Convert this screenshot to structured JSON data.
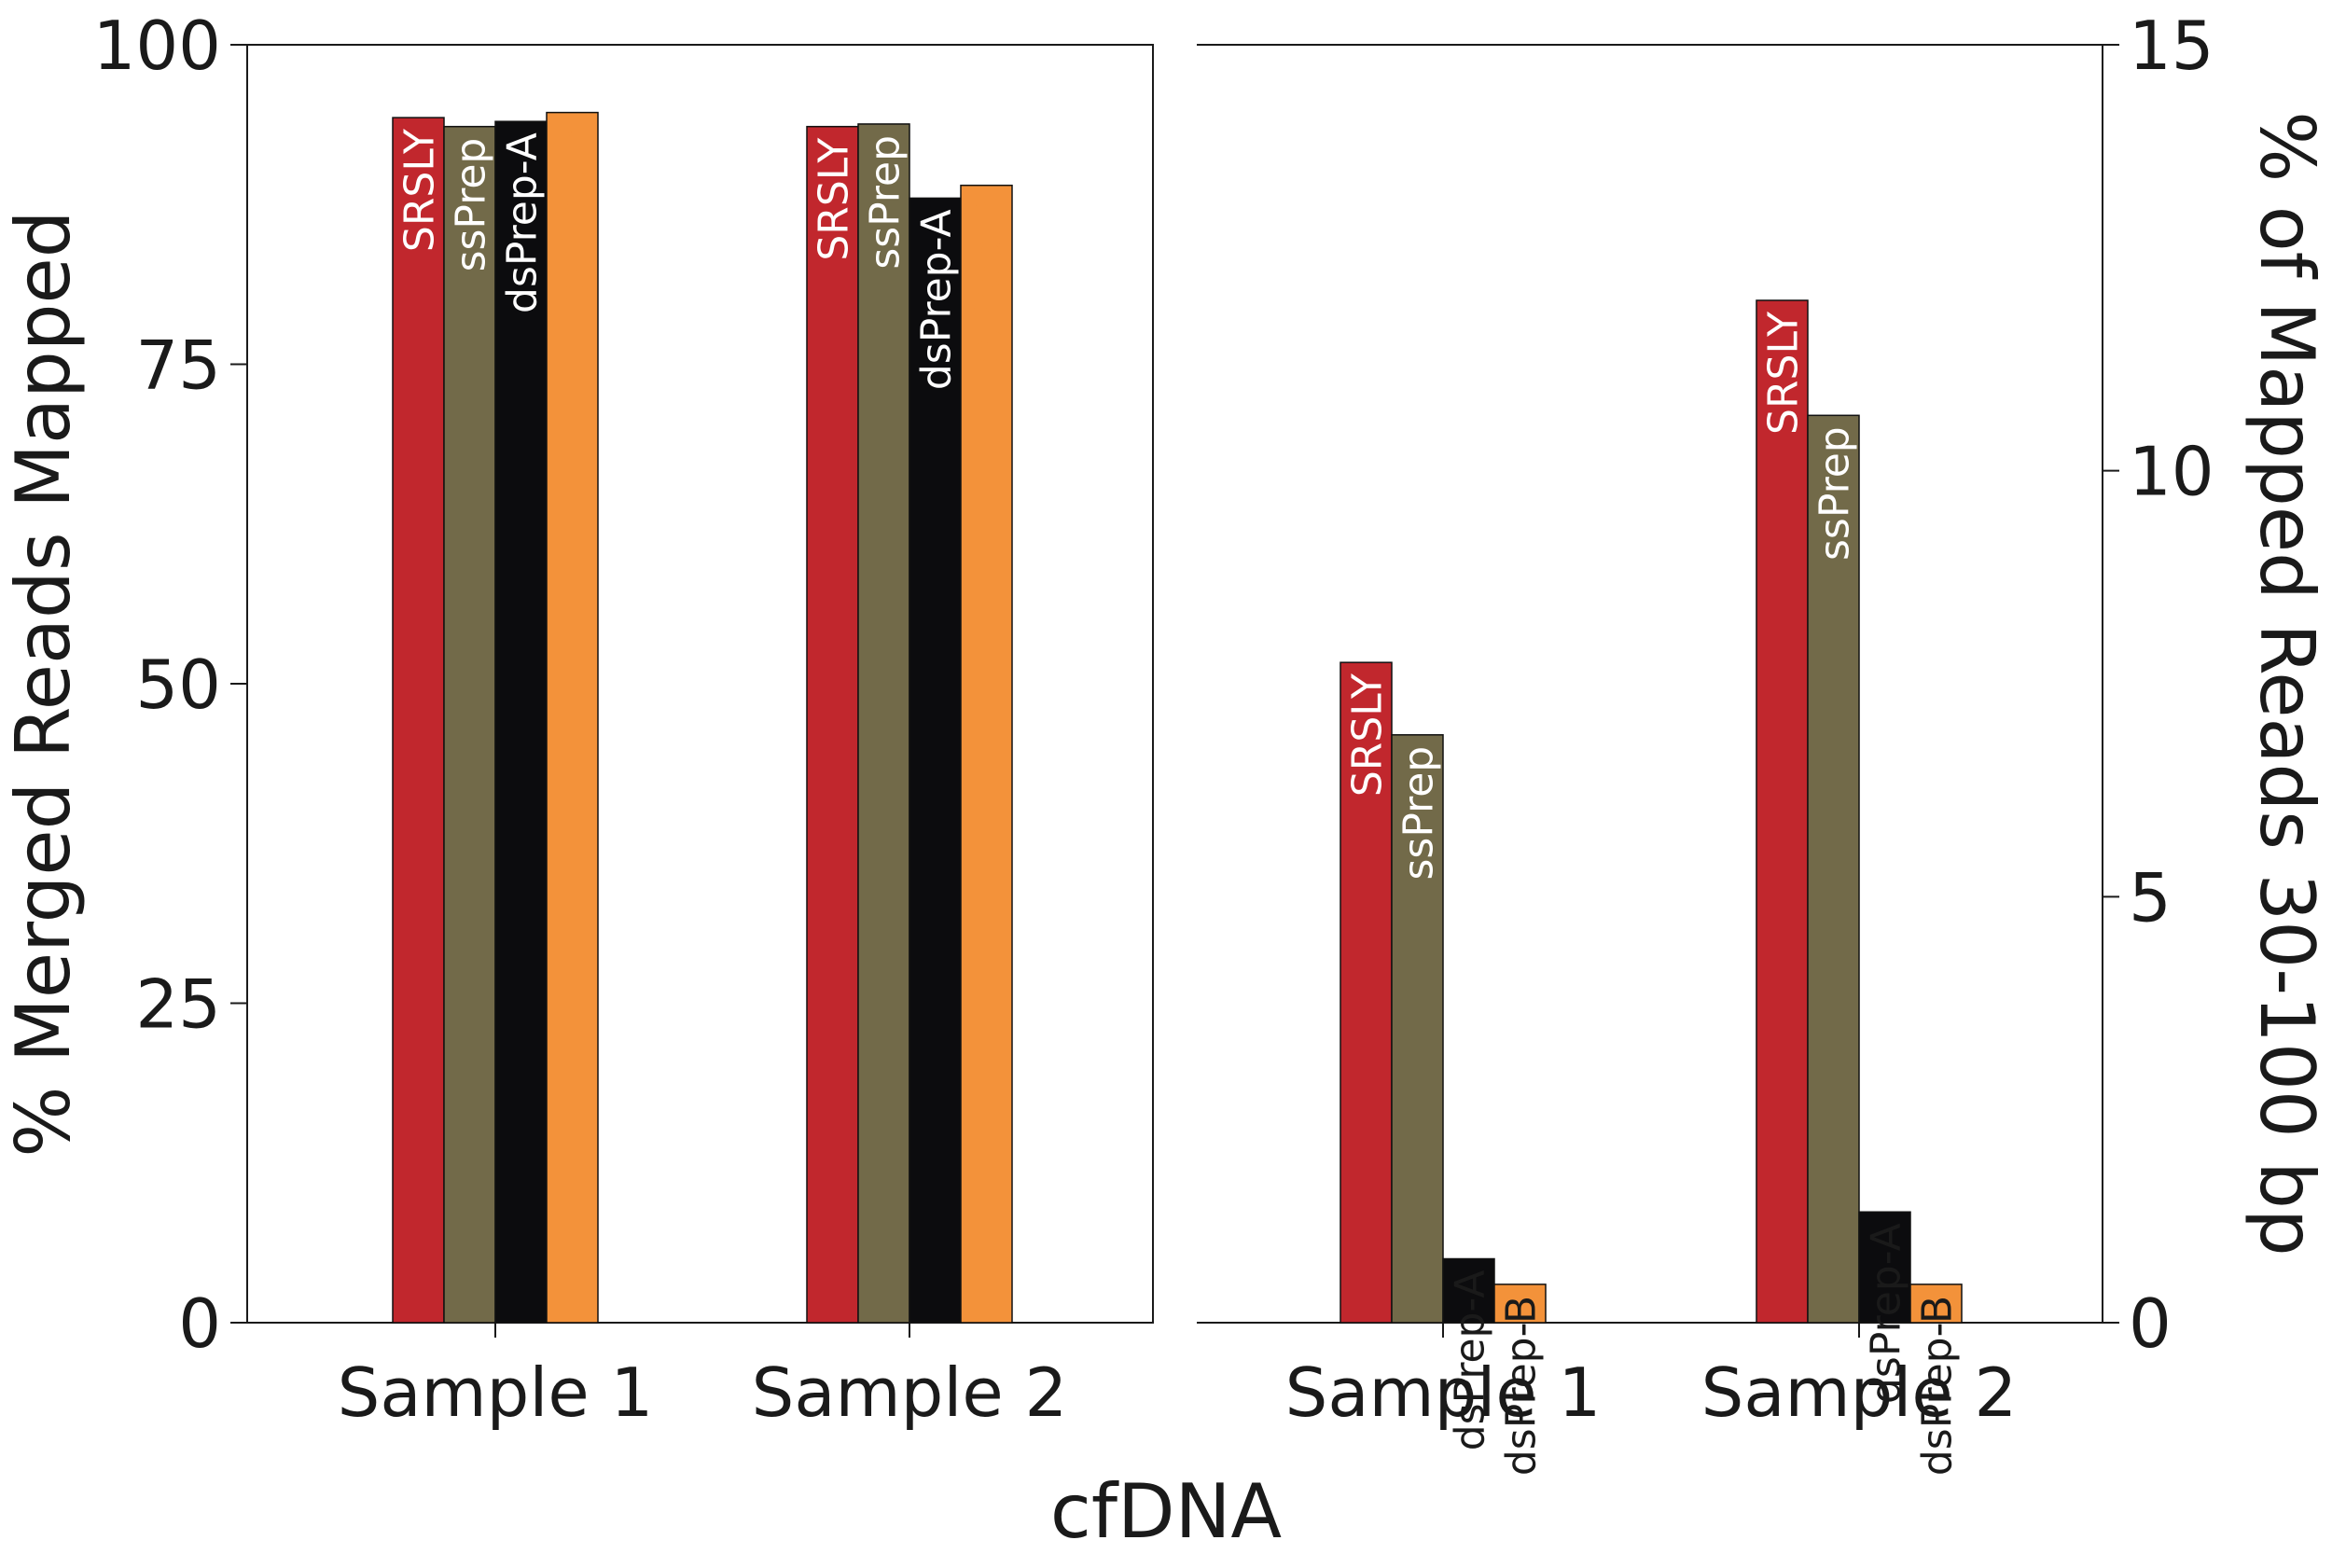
{
  "figure": {
    "xlabel": "cfDNA"
  },
  "colors": {
    "SRSLY": "#c1272d",
    "ssPrep": "#726a49",
    "dsPrep-A": "#0c0c0e",
    "dsPrep-B": "#f3923a",
    "axis": "#1a1a1a"
  },
  "chart_data": [
    {
      "type": "bar",
      "categories": [
        "Sample 1",
        "Sample 2"
      ],
      "series": [
        {
          "name": "SRSLY",
          "values": [
            94.3,
            93.6
          ],
          "label_color": "#ffffff"
        },
        {
          "name": "ssPrep",
          "values": [
            93.6,
            93.8
          ],
          "label_color": "#ffffff"
        },
        {
          "name": "dsPrep-A",
          "values": [
            94.0,
            88.0
          ],
          "label_color": "#ffffff"
        },
        {
          "name": "dsPrep-B",
          "values": [
            94.7,
            89.0
          ],
          "label_color": "#f3923a"
        }
      ],
      "ylabel": "% Merged Reads Mapped",
      "ylim": [
        0,
        100
      ],
      "yticks": [
        "0",
        "25",
        "50",
        "75",
        "100"
      ],
      "y_axis_side": "left",
      "grid": false
    },
    {
      "type": "bar",
      "categories": [
        "Sample 1",
        "Sample 2"
      ],
      "series": [
        {
          "name": "SRSLY",
          "values": [
            7.75,
            12.0
          ],
          "label_color": "#ffffff"
        },
        {
          "name": "ssPrep",
          "values": [
            6.9,
            10.65
          ],
          "label_color": "#ffffff"
        },
        {
          "name": "dsPrep-A",
          "values": [
            0.75,
            1.3
          ],
          "label_color": "#1a1a1a"
        },
        {
          "name": "dsPrep-B",
          "values": [
            0.45,
            0.45
          ],
          "label_color": "#1a1a1a"
        }
      ],
      "ylabel": "% of Mapped Reads 30-100 bp",
      "ylim": [
        0,
        15
      ],
      "yticks": [
        "0",
        "5",
        "10",
        "15"
      ],
      "y_axis_side": "right",
      "grid": false
    }
  ]
}
